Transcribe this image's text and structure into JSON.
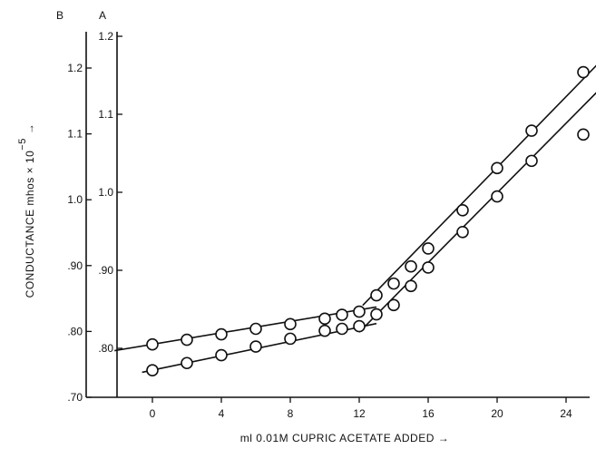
{
  "chart_data": {
    "type": "scatter",
    "title": "",
    "xlabel": "ml 0.01M CUPRIC ACETATE ADDED →",
    "ylabel_main": "CONDUCTANCE mhos × 10",
    "ylabel_exponent": "−5",
    "ylabel_arrow": "→",
    "axis_header_b": "B",
    "axis_header_a": "A",
    "xlim": [
      -2.6,
      26.2
    ],
    "x_ticks": [
      {
        "value": 0,
        "label": "0"
      },
      {
        "value": 4,
        "label": "4"
      },
      {
        "value": 8,
        "label": "8"
      },
      {
        "value": 12,
        "label": "12"
      },
      {
        "value": 16,
        "label": "16"
      },
      {
        "value": 20,
        "label": "20"
      },
      {
        "value": 24,
        "label": "24"
      }
    ],
    "y_axis_a": {
      "range": [
        0.77,
        1.2
      ],
      "ticks": [
        {
          "value": 1.2,
          "label": "1.2"
        },
        {
          "value": 1.1,
          "label": "1.1"
        },
        {
          "value": 1.0,
          "label": "1.0"
        },
        {
          "value": 0.9,
          "label": ".90"
        },
        {
          "value": 0.8,
          "label": ".80"
        }
      ]
    },
    "y_axis_b": {
      "range": [
        0.7,
        1.25
      ],
      "ticks": [
        {
          "value": 1.2,
          "label": "1.2"
        },
        {
          "value": 1.1,
          "label": "1.1"
        },
        {
          "value": 1.0,
          "label": "1.0"
        },
        {
          "value": 0.9,
          "label": ".90"
        },
        {
          "value": 0.8,
          "label": ".80"
        },
        {
          "value": 0.7,
          "label": ".70"
        }
      ]
    },
    "series": [
      {
        "name": "A",
        "axis": "A",
        "x": [
          0,
          2,
          4,
          6,
          8,
          10,
          11,
          12,
          13,
          14,
          15,
          16,
          18,
          20,
          22,
          25
        ],
        "y": [
          0.805,
          0.811,
          0.818,
          0.825,
          0.831,
          0.838,
          0.843,
          0.847,
          0.868,
          0.883,
          0.905,
          0.928,
          0.977,
          1.031,
          1.079,
          1.154
        ],
        "fit_segments": [
          {
            "x": [
              -2.2,
              13.0
            ],
            "y": [
              0.797,
              0.853
            ]
          },
          {
            "x": [
              12.2,
              26.0
            ],
            "y": [
              0.855,
              1.168
            ]
          }
        ]
      },
      {
        "name": "B",
        "axis": "B",
        "x": [
          0,
          2,
          4,
          6,
          8,
          10,
          11,
          12,
          13,
          14,
          15,
          16,
          18,
          20,
          22,
          25
        ],
        "y": [
          0.741,
          0.752,
          0.764,
          0.777,
          0.789,
          0.801,
          0.804,
          0.808,
          0.826,
          0.84,
          0.869,
          0.897,
          0.951,
          1.005,
          1.059,
          1.099
        ],
        "fit_segments": [
          {
            "x": [
              -0.6,
              13.0
            ],
            "y": [
              0.738,
              0.812
            ]
          },
          {
            "x": [
              12.0,
              26.0
            ],
            "y": [
              0.799,
              1.169
            ]
          }
        ]
      }
    ],
    "grid": false,
    "legend": "series letters at right end of lines"
  }
}
